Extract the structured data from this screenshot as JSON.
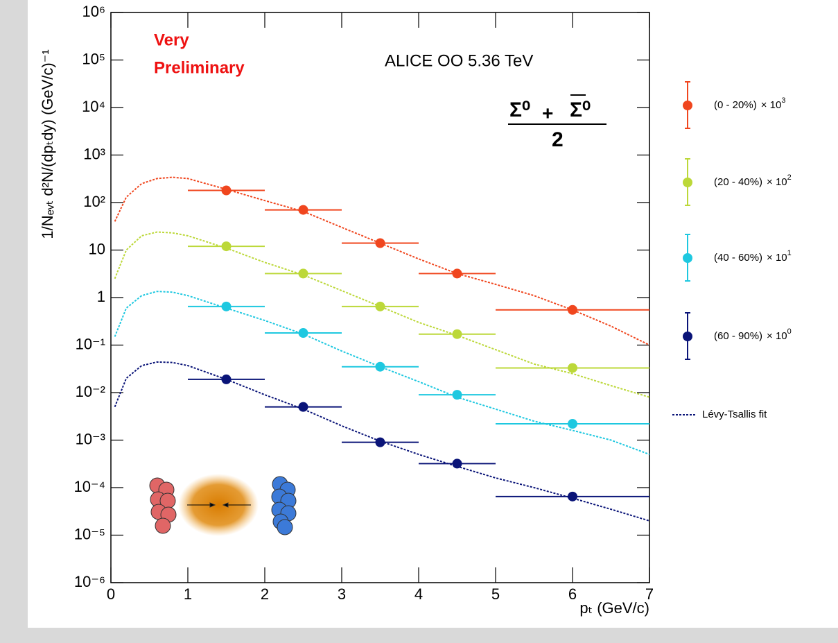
{
  "chart_data": {
    "type": "scatter",
    "log_y": true,
    "xlim": [
      0,
      7
    ],
    "ylim": [
      1e-06,
      1000000
    ],
    "xticks": [
      0,
      1,
      2,
      3,
      4,
      5,
      6,
      7
    ],
    "yticks": [
      {
        "value": 1000000,
        "label": "10⁶"
      },
      {
        "value": 100000,
        "label": "10⁵"
      },
      {
        "value": 10000,
        "label": "10⁴"
      },
      {
        "value": 1000,
        "label": "10³"
      },
      {
        "value": 100,
        "label": "10²"
      },
      10,
      1,
      {
        "value": 0.1,
        "label": "10⁻¹"
      },
      {
        "value": 0.01,
        "label": "10⁻²"
      },
      {
        "value": 0.001,
        "label": "10⁻³"
      },
      {
        "value": 0.0001,
        "label": "10⁻⁴"
      },
      {
        "value": 1e-05,
        "label": "10⁻⁵"
      },
      {
        "value": 1e-06,
        "label": "10⁻⁶"
      }
    ],
    "xlabel": "pₜ (GeV/c)",
    "ylabel": "1/Nₑᵥₜ d²N/(dpₜdy) (GeV/c)⁻¹",
    "annotations": {
      "preliminary_1": "Very",
      "preliminary_2": "Preliminary",
      "experiment": "ALICE OO 5.36 TeV"
    },
    "formula": {
      "left": "Σ⁰",
      "op": "+",
      "right": "Σ⁰",
      "denominator": "2"
    },
    "fit_label": "Lévy-Tsallis fit",
    "fit_x": [
      0.05,
      0.2,
      0.4,
      0.6,
      0.8,
      1,
      1.5,
      2,
      2.5,
      3,
      3.5,
      4,
      4.5,
      5,
      5.5,
      6,
      6.5,
      7
    ],
    "series": [
      {
        "name": "(0 - 20%)",
        "scale_label": "× 10",
        "scale_exp": "3",
        "color": "#f0461e",
        "x": [
          1.5,
          2.5,
          3.5,
          4.5,
          6
        ],
        "xerr": [
          0.5,
          0.5,
          0.5,
          0.5,
          1
        ],
        "values": [
          180,
          70,
          14,
          3.2,
          0.55
        ],
        "fit": [
          40,
          130,
          250,
          320,
          340,
          320,
          190,
          110,
          65,
          30,
          14,
          6.5,
          3.2,
          1.9,
          1.1,
          0.55,
          0.25,
          0.1
        ]
      },
      {
        "name": "(20 - 40%)",
        "scale_label": "× 10",
        "scale_exp": "2",
        "color": "#bcd839",
        "x": [
          1.5,
          2.5,
          3.5,
          4.5,
          6
        ],
        "xerr": [
          0.5,
          0.5,
          0.5,
          0.5,
          1
        ],
        "values": [
          12,
          3.2,
          0.65,
          0.17,
          0.033
        ],
        "fit": [
          2.5,
          10,
          20,
          24,
          23,
          20,
          11,
          5.5,
          3,
          1.4,
          0.65,
          0.3,
          0.16,
          0.08,
          0.04,
          0.025,
          0.014,
          0.008
        ]
      },
      {
        "name": "(40 - 60%)",
        "scale_label": "× 10",
        "scale_exp": "1",
        "color": "#1ec8e0",
        "x": [
          1.5,
          2.5,
          3.5,
          4.5,
          6
        ],
        "xerr": [
          0.5,
          0.5,
          0.5,
          0.5,
          1
        ],
        "values": [
          0.65,
          0.18,
          0.035,
          0.009,
          0.0022
        ],
        "fit": [
          0.15,
          0.6,
          1.1,
          1.35,
          1.3,
          1.1,
          0.6,
          0.33,
          0.17,
          0.075,
          0.035,
          0.017,
          0.008,
          0.0045,
          0.0025,
          0.0016,
          0.001,
          0.0005
        ]
      },
      {
        "name": "(60 - 90%)",
        "scale_label": "× 10",
        "scale_exp": "0",
        "color": "#0a1478",
        "x": [
          1.5,
          2.5,
          3.5,
          4.5,
          6
        ],
        "xerr": [
          0.5,
          0.5,
          0.5,
          0.5,
          1
        ],
        "values": [
          0.019,
          0.005,
          0.0009,
          0.00032,
          6.5e-05
        ],
        "fit": [
          0.005,
          0.02,
          0.037,
          0.044,
          0.043,
          0.037,
          0.019,
          0.009,
          0.0045,
          0.002,
          0.00095,
          0.0005,
          0.00028,
          0.00016,
          0.0001,
          6e-05,
          3.5e-05,
          2e-05
        ]
      }
    ]
  }
}
